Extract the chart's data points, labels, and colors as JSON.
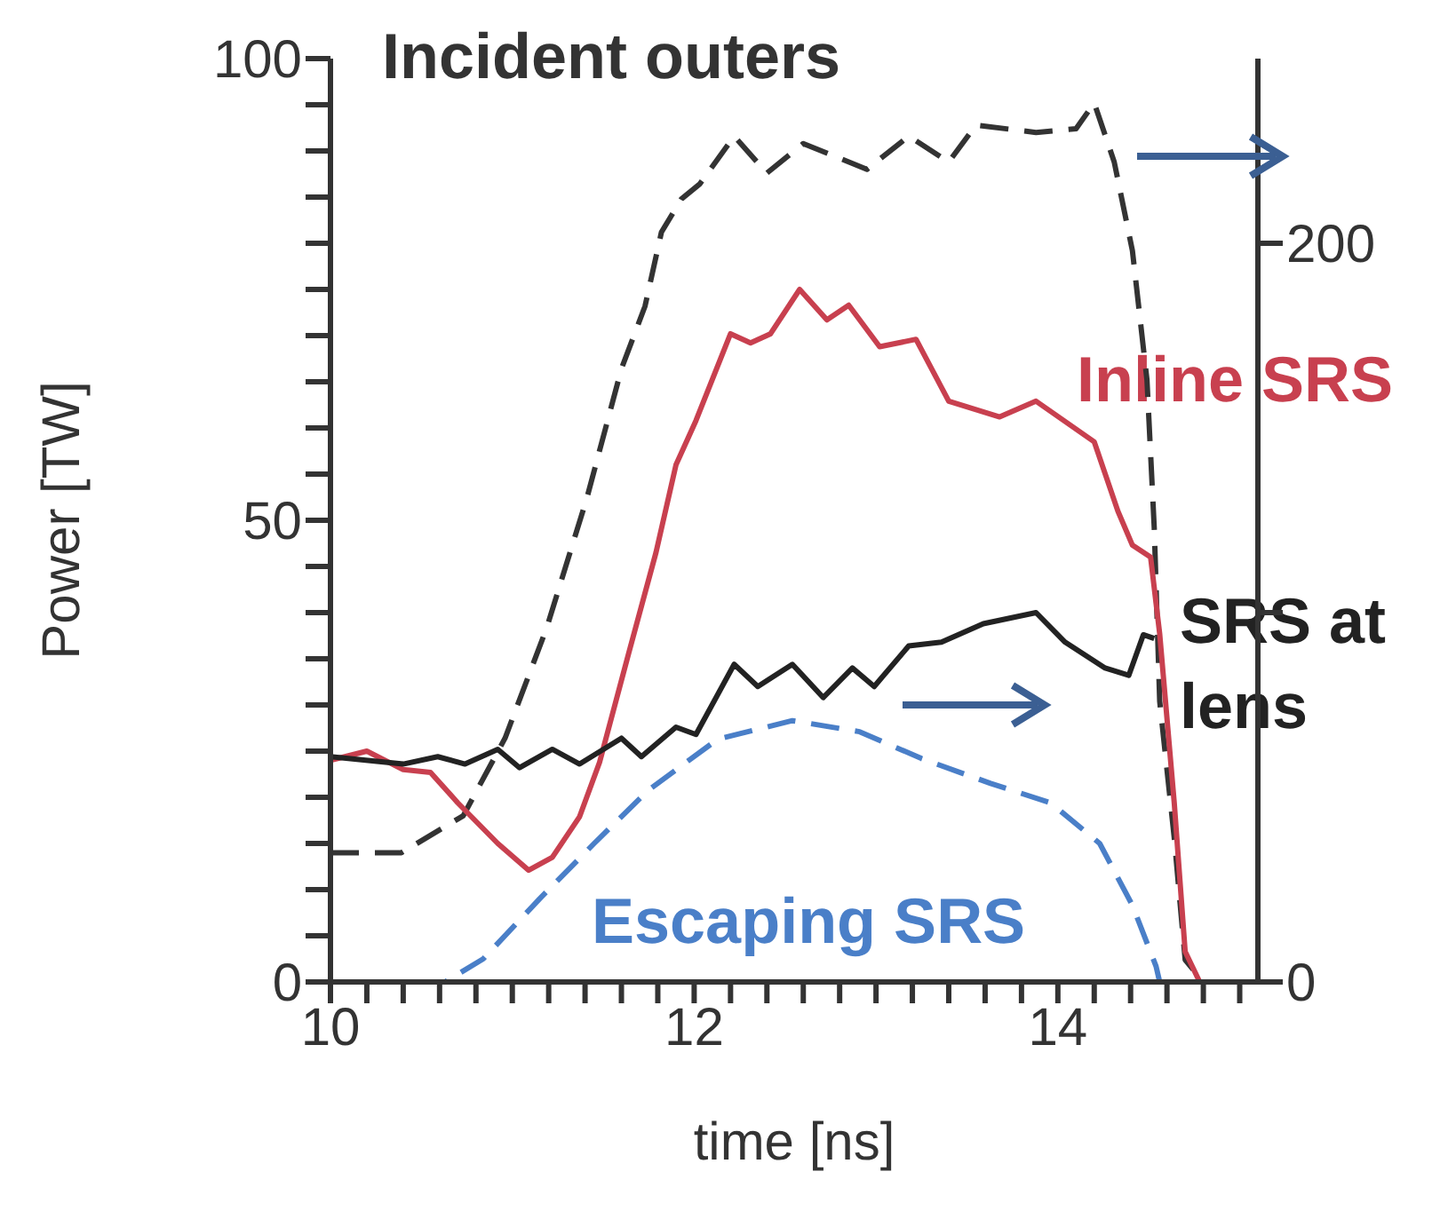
{
  "chart_data": {
    "type": "line",
    "xlabel": "time  [ns]",
    "ylabel": "Power  [TW]",
    "legend": false,
    "grid": false,
    "xlim": [
      10,
      15.1
    ],
    "xticks": [
      10,
      {
        "value": 10.2,
        "label": null
      },
      {
        "value": 10.4,
        "label": null
      },
      {
        "value": 10.6,
        "label": null
      },
      {
        "value": 10.8,
        "label": null
      },
      {
        "value": 11,
        "label": null
      },
      {
        "value": 11.2,
        "label": null
      },
      {
        "value": 11.4,
        "label": null
      },
      {
        "value": 11.6,
        "label": null
      },
      {
        "value": 11.8,
        "label": null
      },
      12,
      {
        "value": 12.2,
        "label": null
      },
      {
        "value": 12.4,
        "label": null
      },
      {
        "value": 12.6,
        "label": null
      },
      {
        "value": 12.8,
        "label": null
      },
      {
        "value": 13,
        "label": null
      },
      {
        "value": 13.2,
        "label": null
      },
      {
        "value": 13.4,
        "label": null
      },
      {
        "value": 13.6,
        "label": null
      },
      {
        "value": 13.8,
        "label": null
      },
      14,
      {
        "value": 14.2,
        "label": null
      },
      {
        "value": 14.4,
        "label": null
      },
      {
        "value": 14.6,
        "label": null
      },
      {
        "value": 14.8,
        "label": null
      },
      {
        "value": 15,
        "label": null
      }
    ],
    "ylim": [
      0,
      100
    ],
    "yticks": [
      0,
      {
        "value": 5,
        "label": null
      },
      {
        "value": 10,
        "label": null
      },
      {
        "value": 15,
        "label": null
      },
      {
        "value": 20,
        "label": null
      },
      {
        "value": 25,
        "label": null
      },
      {
        "value": 30,
        "label": null
      },
      {
        "value": 35,
        "label": null
      },
      {
        "value": 40,
        "label": null
      },
      {
        "value": 45,
        "label": null
      },
      50,
      {
        "value": 55,
        "label": null
      },
      {
        "value": 60,
        "label": null
      },
      {
        "value": 65,
        "label": null
      },
      {
        "value": 70,
        "label": null
      },
      {
        "value": 75,
        "label": null
      },
      {
        "value": 80,
        "label": null
      },
      {
        "value": 85,
        "label": null
      },
      {
        "value": 90,
        "label": null
      },
      {
        "value": 95,
        "label": null
      },
      100
    ],
    "y2lim": [
      0,
      250
    ],
    "y2ticks": [
      0,
      {
        "value": 100,
        "label": null
      },
      200
    ],
    "series": [
      {
        "name": "Incident outers",
        "color": "#333333",
        "axis": "y2",
        "line_style": "dashed",
        "x": [
          10,
          10.39,
          10.73,
          10.96,
          11.19,
          11.41,
          11.6,
          11.73,
          11.82,
          11.93,
          12.03,
          12.22,
          12.4,
          12.6,
          12.95,
          13.18,
          13.4,
          13.55,
          13.88,
          14.1,
          14.2,
          14.31,
          14.41,
          14.49,
          14.53,
          14.56,
          14.64,
          14.7,
          14.8
        ],
        "values": [
          35,
          35,
          45,
          66,
          96,
          131,
          166,
          183,
          203,
          212,
          216,
          229,
          219,
          227,
          220,
          229,
          222,
          232,
          230,
          231,
          238,
          222,
          198,
          163,
          123,
          76,
          39,
          6,
          0
        ]
      },
      {
        "name": "Inline SRS",
        "color": "#c8404f",
        "line_style": "solid",
        "x": [
          10,
          10.2,
          10.4,
          10.55,
          10.7,
          10.92,
          11.09,
          11.22,
          11.37,
          11.48,
          11.64,
          11.79,
          11.9,
          12.01,
          12.2,
          12.31,
          12.42,
          12.58,
          12.73,
          12.85,
          13.02,
          13.22,
          13.4,
          13.68,
          13.88,
          14.2,
          14.33,
          14.41,
          14.51,
          14.56,
          14.64,
          14.7,
          14.78
        ],
        "values": [
          24,
          25,
          23,
          22.7,
          19.4,
          15,
          12.1,
          13.5,
          17.9,
          23.8,
          35.6,
          46.5,
          56,
          60.8,
          70.2,
          69.2,
          70.2,
          75,
          71.7,
          73.3,
          68.8,
          69.6,
          62.9,
          61.2,
          62.9,
          58.5,
          51,
          47.3,
          46,
          37.7,
          19.4,
          3.3,
          0
        ]
      },
      {
        "name": "SRS at lens",
        "color": "#222222",
        "axis": "y2",
        "line_style": "solid",
        "x": [
          10,
          10.4,
          10.59,
          10.74,
          10.92,
          11.04,
          11.22,
          11.37,
          11.6,
          11.71,
          11.9,
          12.01,
          12.22,
          12.35,
          12.54,
          12.71,
          12.87,
          12.99,
          13.18,
          13.36,
          13.59,
          13.88,
          14.04,
          14.26,
          14.39,
          14.47,
          14.53
        ],
        "values": [
          61,
          59,
          61,
          59,
          63,
          58,
          63,
          59,
          66,
          61,
          69,
          67,
          86,
          80,
          86,
          77,
          85,
          80,
          91,
          92,
          97,
          100,
          92,
          85,
          83,
          94,
          93
        ]
      },
      {
        "name": "Escaping SRS",
        "color": "#4a7fc8",
        "line_style": "dashed",
        "x": [
          10,
          10.63,
          10.84,
          11.15,
          11.45,
          11.75,
          12.13,
          12.54,
          12.91,
          13.25,
          13.63,
          13.96,
          14.23,
          14.41,
          14.54,
          14.56
        ],
        "values": [
          0,
          0,
          2.5,
          9,
          15,
          20.8,
          26.3,
          28.3,
          27.1,
          24.2,
          21.5,
          19.4,
          15,
          8.3,
          1.7,
          0
        ]
      }
    ]
  }
}
